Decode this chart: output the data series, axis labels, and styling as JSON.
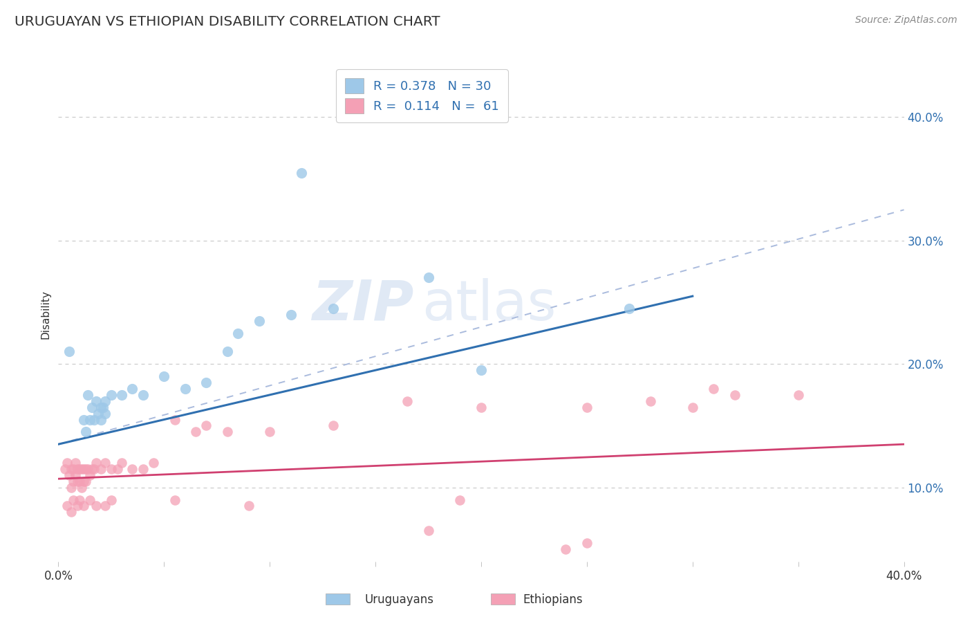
{
  "title": "URUGUAYAN VS ETHIOPIAN DISABILITY CORRELATION CHART",
  "source": "Source: ZipAtlas.com",
  "ylabel": "Disability",
  "right_ytick_vals": [
    0.1,
    0.2,
    0.3,
    0.4
  ],
  "xmin": 0.0,
  "xmax": 0.4,
  "ymin": 0.04,
  "ymax": 0.44,
  "uruguayan_color": "#9ec8e8",
  "ethiopian_color": "#f4a0b5",
  "uruguayan_line_color": "#3070b0",
  "ethiopian_line_color": "#d04070",
  "dashed_line_color": "#aabbdd",
  "uruguayan_scatter": [
    [
      0.005,
      0.21
    ],
    [
      0.012,
      0.155
    ],
    [
      0.014,
      0.175
    ],
    [
      0.016,
      0.165
    ],
    [
      0.017,
      0.155
    ],
    [
      0.018,
      0.17
    ],
    [
      0.019,
      0.16
    ],
    [
      0.02,
      0.155
    ],
    [
      0.02,
      0.165
    ],
    [
      0.021,
      0.165
    ],
    [
      0.022,
      0.17
    ],
    [
      0.025,
      0.175
    ],
    [
      0.03,
      0.175
    ],
    [
      0.035,
      0.18
    ],
    [
      0.04,
      0.175
    ],
    [
      0.05,
      0.19
    ],
    [
      0.07,
      0.185
    ],
    [
      0.08,
      0.21
    ],
    [
      0.085,
      0.225
    ],
    [
      0.095,
      0.235
    ],
    [
      0.11,
      0.24
    ],
    [
      0.13,
      0.245
    ],
    [
      0.175,
      0.27
    ],
    [
      0.2,
      0.195
    ],
    [
      0.27,
      0.245
    ],
    [
      0.115,
      0.355
    ],
    [
      0.013,
      0.145
    ],
    [
      0.015,
      0.155
    ],
    [
      0.06,
      0.18
    ],
    [
      0.022,
      0.16
    ]
  ],
  "ethiopian_scatter": [
    [
      0.003,
      0.115
    ],
    [
      0.004,
      0.12
    ],
    [
      0.005,
      0.11
    ],
    [
      0.006,
      0.115
    ],
    [
      0.006,
      0.1
    ],
    [
      0.007,
      0.115
    ],
    [
      0.007,
      0.105
    ],
    [
      0.008,
      0.11
    ],
    [
      0.008,
      0.12
    ],
    [
      0.009,
      0.115
    ],
    [
      0.009,
      0.105
    ],
    [
      0.01,
      0.115
    ],
    [
      0.01,
      0.105
    ],
    [
      0.011,
      0.115
    ],
    [
      0.011,
      0.1
    ],
    [
      0.012,
      0.115
    ],
    [
      0.012,
      0.105
    ],
    [
      0.013,
      0.115
    ],
    [
      0.013,
      0.105
    ],
    [
      0.014,
      0.115
    ],
    [
      0.015,
      0.11
    ],
    [
      0.016,
      0.115
    ],
    [
      0.017,
      0.115
    ],
    [
      0.018,
      0.12
    ],
    [
      0.02,
      0.115
    ],
    [
      0.022,
      0.12
    ],
    [
      0.025,
      0.115
    ],
    [
      0.028,
      0.115
    ],
    [
      0.03,
      0.12
    ],
    [
      0.035,
      0.115
    ],
    [
      0.04,
      0.115
    ],
    [
      0.045,
      0.12
    ],
    [
      0.055,
      0.155
    ],
    [
      0.065,
      0.145
    ],
    [
      0.07,
      0.15
    ],
    [
      0.08,
      0.145
    ],
    [
      0.1,
      0.145
    ],
    [
      0.13,
      0.15
    ],
    [
      0.165,
      0.17
    ],
    [
      0.2,
      0.165
    ],
    [
      0.25,
      0.165
    ],
    [
      0.28,
      0.17
    ],
    [
      0.31,
      0.18
    ],
    [
      0.35,
      0.175
    ],
    [
      0.3,
      0.165
    ],
    [
      0.32,
      0.175
    ],
    [
      0.004,
      0.085
    ],
    [
      0.006,
      0.08
    ],
    [
      0.007,
      0.09
    ],
    [
      0.009,
      0.085
    ],
    [
      0.01,
      0.09
    ],
    [
      0.012,
      0.085
    ],
    [
      0.015,
      0.09
    ],
    [
      0.018,
      0.085
    ],
    [
      0.022,
      0.085
    ],
    [
      0.025,
      0.09
    ],
    [
      0.055,
      0.09
    ],
    [
      0.09,
      0.085
    ],
    [
      0.175,
      0.065
    ],
    [
      0.24,
      0.05
    ],
    [
      0.25,
      0.055
    ],
    [
      0.19,
      0.09
    ]
  ],
  "uruguayan_trendline_x": [
    0.0,
    0.3
  ],
  "uruguayan_trendline_y": [
    0.135,
    0.255
  ],
  "ethiopian_trendline_x": [
    0.0,
    0.4
  ],
  "ethiopian_trendline_y": [
    0.107,
    0.135
  ],
  "dashed_line_x": [
    0.0,
    0.4
  ],
  "dashed_line_y": [
    0.135,
    0.325
  ],
  "watermark_zip": "ZIP",
  "watermark_atlas": "atlas",
  "bg_color": "#ffffff",
  "grid_color": "#cccccc",
  "legend_border_color": "#cccccc",
  "label_color": "#3070b0",
  "text_color": "#333333",
  "source_color": "#888888",
  "bottom_labels": [
    "Uruguayans",
    "Ethiopians"
  ]
}
